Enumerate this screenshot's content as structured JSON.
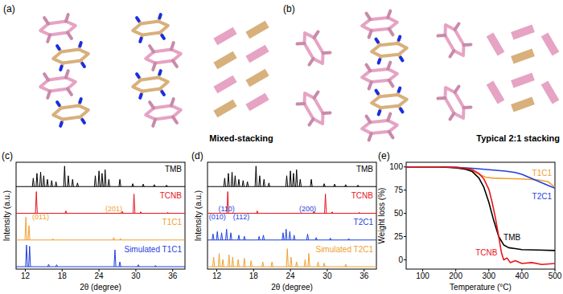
{
  "diagrams": [
    {
      "title": "(a)",
      "caption": "Mixed-stacking"
    },
    {
      "title": "(b)",
      "caption": "Typical 2:1 stacking"
    }
  ],
  "chart_data": [
    {
      "type": "xrd",
      "title": "(c)",
      "x_label": "2θ (degree)",
      "y_label": "Intensity (a.u.)",
      "xlim": [
        10.5,
        38
      ],
      "xticks": [
        12,
        18,
        24,
        30,
        36
      ],
      "ylim": [
        0,
        1
      ],
      "tick_labels": "x",
      "series": [
        {
          "name": "TMB",
          "color": "#000000",
          "x": [
            13.3,
            13.9,
            14.5,
            15.0,
            15.6,
            16.3,
            17.0,
            18.4,
            19.0,
            19.7,
            20.5,
            23.4,
            24.0,
            24.5,
            25.0,
            25.6,
            27.4,
            29.5,
            31.2,
            33.0,
            35.0
          ],
          "values": [
            0.35,
            0.55,
            0.6,
            0.45,
            0.3,
            0.25,
            0.2,
            0.85,
            0.45,
            0.3,
            0.15,
            0.45,
            0.65,
            0.55,
            0.7,
            0.3,
            0.3,
            0.12,
            0.1,
            0.08,
            0.06
          ]
        },
        {
          "name": "TCNB",
          "color": "#e8141b",
          "x": [
            13.8,
            18.6,
            27.8,
            29.7,
            30.8,
            35.2
          ],
          "values": [
            0.9,
            0.1,
            0.08,
            0.8,
            0.06,
            0.04
          ]
        },
        {
          "name": "T1C1",
          "color": "#f0a030",
          "x": [
            12.1,
            12.6,
            16.5,
            26.4,
            27.5
          ],
          "values": [
            0.95,
            0.6,
            0.05,
            0.1,
            0.06
          ],
          "annotations": [
            {
              "text": "(01̄1)",
              "x": 14.5
            },
            {
              "text": "(201)",
              "x": 26.4
            }
          ]
        },
        {
          "name": "Simulated T1C1",
          "color": "#1f3fe0",
          "x": [
            12.2,
            12.7,
            15.8,
            17.1,
            26.6,
            27.4,
            30.4,
            33.2
          ],
          "values": [
            0.9,
            0.85,
            0.1,
            0.08,
            0.7,
            0.2,
            0.08,
            0.05
          ]
        }
      ]
    },
    {
      "type": "xrd",
      "title": "(d)",
      "x_label": "2θ (degree)",
      "y_label": "Intensity (a.u.)",
      "xlim": [
        10.5,
        38
      ],
      "xticks": [
        12,
        18,
        24,
        30,
        36
      ],
      "ylim": [
        0,
        1
      ],
      "tick_labels": "x",
      "series": [
        {
          "name": "TMB",
          "color": "#000000",
          "x": [
            13.3,
            13.9,
            14.5,
            15.0,
            15.6,
            16.3,
            17.0,
            18.4,
            19.0,
            19.7,
            20.5,
            23.4,
            24.0,
            24.5,
            25.0,
            25.6,
            27.4,
            29.5,
            31.2,
            33.0,
            35.0
          ],
          "values": [
            0.35,
            0.55,
            0.6,
            0.45,
            0.3,
            0.25,
            0.2,
            0.85,
            0.45,
            0.3,
            0.15,
            0.45,
            0.65,
            0.55,
            0.7,
            0.3,
            0.3,
            0.12,
            0.1,
            0.08,
            0.06
          ]
        },
        {
          "name": "TCNB",
          "color": "#e8141b",
          "x": [
            13.8,
            18.6,
            27.8,
            29.7,
            30.8,
            35.2
          ],
          "values": [
            0.9,
            0.1,
            0.08,
            0.8,
            0.06,
            0.04
          ]
        },
        {
          "name": "T2C1",
          "color": "#1f3fe0",
          "x": [
            11.4,
            12.1,
            12.8,
            13.6,
            14.3,
            15.6,
            16.5,
            18.9,
            19.6,
            22.8,
            23.3,
            23.9,
            24.6,
            26.8,
            28.2,
            30.5,
            33.5
          ],
          "values": [
            0.25,
            0.35,
            0.3,
            0.45,
            0.3,
            0.2,
            0.15,
            0.15,
            0.2,
            0.3,
            0.45,
            0.35,
            0.2,
            0.25,
            0.1,
            0.08,
            0.06
          ],
          "annotations": [
            {
              "text": "(010)",
              "x": 12.1
            },
            {
              "text": "(110)",
              "x": 13.6
            },
            {
              "text": "(112)",
              "x": 16.0
            },
            {
              "text": "(200)",
              "x": 26.8
            }
          ]
        },
        {
          "name": "Simulated T2C1",
          "color": "#f0a030",
          "x": [
            11.5,
            12.4,
            13.0,
            14.0,
            14.6,
            15.5,
            16.5,
            17.6,
            19.5,
            21.0,
            23.5,
            24.1,
            25.0,
            26.4,
            27.0,
            28.5,
            29.5,
            33.0
          ],
          "values": [
            0.4,
            0.55,
            0.3,
            0.5,
            0.4,
            0.3,
            0.35,
            0.25,
            0.2,
            0.2,
            0.75,
            0.4,
            0.2,
            0.3,
            0.55,
            0.2,
            0.15,
            0.1
          ]
        }
      ]
    },
    {
      "type": "line",
      "title": "(e)",
      "x_label": "Temperature (°C)",
      "y_label": "Weight loss (%)",
      "xlim": [
        50,
        500
      ],
      "xticks": [
        100,
        200,
        300,
        400,
        500
      ],
      "ylim": [
        -10,
        105
      ],
      "yticks": [
        0,
        25,
        50,
        75,
        100
      ],
      "series": [
        {
          "name": "T1C1",
          "color": "#f0a030",
          "x": [
            50,
            150,
            200,
            230,
            250,
            270,
            290,
            310,
            350,
            400,
            450,
            480,
            500
          ],
          "values": [
            100,
            100,
            99.5,
            98.5,
            96,
            92,
            89,
            88,
            87.5,
            87,
            86,
            84,
            78
          ]
        },
        {
          "name": "T2C1",
          "color": "#1f3fe0",
          "x": [
            50,
            150,
            200,
            250,
            300,
            350,
            380,
            400,
            420,
            440,
            460,
            480,
            500
          ],
          "values": [
            100,
            100,
            99.5,
            98.5,
            97,
            95.5,
            94,
            92,
            89,
            86,
            83,
            80,
            77
          ]
        },
        {
          "name": "TMB",
          "color": "#000000",
          "x": [
            50,
            150,
            200,
            230,
            250,
            270,
            285,
            300,
            315,
            330,
            345,
            360,
            380,
            400,
            450,
            500
          ],
          "values": [
            100,
            100,
            99,
            97.5,
            95,
            88,
            78,
            62,
            42,
            25,
            16,
            13,
            12,
            11,
            10.5,
            10
          ]
        },
        {
          "name": "TCNB",
          "color": "#e8141b",
          "x": [
            50,
            150,
            200,
            230,
            250,
            270,
            285,
            300,
            310,
            320,
            330,
            338,
            345,
            355,
            365,
            380,
            400,
            430,
            460,
            500
          ],
          "values": [
            100,
            100,
            99.5,
            98.5,
            97,
            93,
            87,
            76,
            62,
            45,
            25,
            8,
            0,
            2,
            -3,
            -1,
            -4,
            -3,
            -5,
            -4
          ]
        }
      ]
    }
  ]
}
